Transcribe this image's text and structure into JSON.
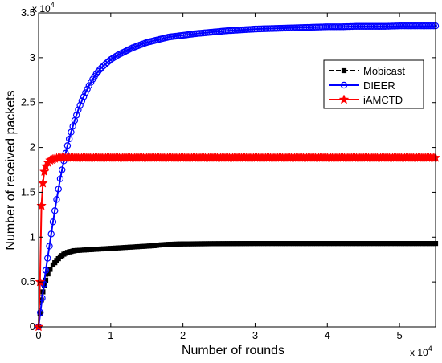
{
  "chart_data": {
    "type": "line",
    "title": "",
    "xlabel": "Number of rounds",
    "ylabel": "Number of received packets",
    "x_multiplier": {
      "base": "x 10",
      "exponent": "4"
    },
    "y_multiplier": {
      "base": "x 10",
      "exponent": "4"
    },
    "xlim": [
      0,
      55000
    ],
    "ylim": [
      0,
      35000
    ],
    "x_ticks": [
      {
        "value": 0,
        "label": "0"
      },
      {
        "value": 10000,
        "label": "1"
      },
      {
        "value": 20000,
        "label": "2"
      },
      {
        "value": 30000,
        "label": "3"
      },
      {
        "value": 40000,
        "label": "4"
      },
      {
        "value": 50000,
        "label": "5"
      }
    ],
    "y_ticks": [
      {
        "value": 0,
        "label": "0"
      },
      {
        "value": 5000,
        "label": "0.5"
      },
      {
        "value": 10000,
        "label": "1"
      },
      {
        "value": 15000,
        "label": "1.5"
      },
      {
        "value": 20000,
        "label": "2"
      },
      {
        "value": 25000,
        "label": "2.5"
      },
      {
        "value": 30000,
        "label": "3"
      },
      {
        "value": 35000,
        "label": "3.5"
      }
    ],
    "grid": false,
    "legend_position": "top-right",
    "series": [
      {
        "name": "Mobicast",
        "color": "#000000",
        "line_style": "dashed",
        "marker": "square",
        "x": [
          0,
          200,
          400,
          600,
          800,
          1000,
          1300,
          1600,
          2000,
          2500,
          3000,
          3500,
          4000,
          4500,
          5000,
          6000,
          7000,
          8000,
          9000,
          10000,
          11000,
          12000,
          13000,
          14000,
          15000,
          16000,
          17000,
          18000,
          20000,
          25000,
          30000,
          35000,
          40000,
          45000,
          50000,
          55000
        ],
        "y": [
          0,
          1500,
          3000,
          3900,
          4600,
          5200,
          5900,
          6400,
          6900,
          7400,
          7800,
          8100,
          8300,
          8400,
          8500,
          8550,
          8600,
          8650,
          8700,
          8750,
          8800,
          8850,
          8900,
          8950,
          9000,
          9050,
          9150,
          9200,
          9250,
          9280,
          9300,
          9300,
          9300,
          9300,
          9300,
          9300
        ]
      },
      {
        "name": "DIEER",
        "color": "#0000ff",
        "line_style": "solid",
        "marker": "circle",
        "x": [
          0,
          500,
          1000,
          1500,
          2000,
          2500,
          3000,
          3500,
          4000,
          4500,
          5000,
          5500,
          6000,
          6500,
          7000,
          7500,
          8000,
          8500,
          9000,
          10000,
          11000,
          12000,
          13000,
          14000,
          15000,
          16000,
          17000,
          18000,
          19000,
          20000,
          22000,
          24000,
          26000,
          28000,
          30000,
          32000,
          34000,
          36000,
          38000,
          40000,
          42000,
          44000,
          46000,
          48000,
          50000,
          52000,
          54000,
          55000
        ],
        "y": [
          0,
          3200,
          6300,
          9000,
          11700,
          14200,
          16500,
          18500,
          20200,
          21700,
          23000,
          24200,
          25200,
          26100,
          26900,
          27600,
          28200,
          28700,
          29100,
          29800,
          30300,
          30700,
          31100,
          31400,
          31700,
          31900,
          32100,
          32300,
          32400,
          32500,
          32700,
          32850,
          33000,
          33100,
          33200,
          33250,
          33300,
          33350,
          33400,
          33450,
          33450,
          33500,
          33500,
          33500,
          33550,
          33550,
          33550,
          33550
        ]
      },
      {
        "name": "iAMCTD",
        "color": "#ff0000",
        "line_style": "solid",
        "marker": "star",
        "x": [
          0,
          200,
          400,
          600,
          800,
          1000,
          1300,
          1600,
          2000,
          2500,
          3000,
          4000,
          5000,
          10000,
          20000,
          30000,
          40000,
          50000,
          55000
        ],
        "y": [
          0,
          5000,
          13500,
          16000,
          17300,
          17900,
          18300,
          18550,
          18700,
          18800,
          18850,
          18850,
          18850,
          18850,
          18850,
          18850,
          18850,
          18850,
          18850
        ]
      }
    ]
  }
}
